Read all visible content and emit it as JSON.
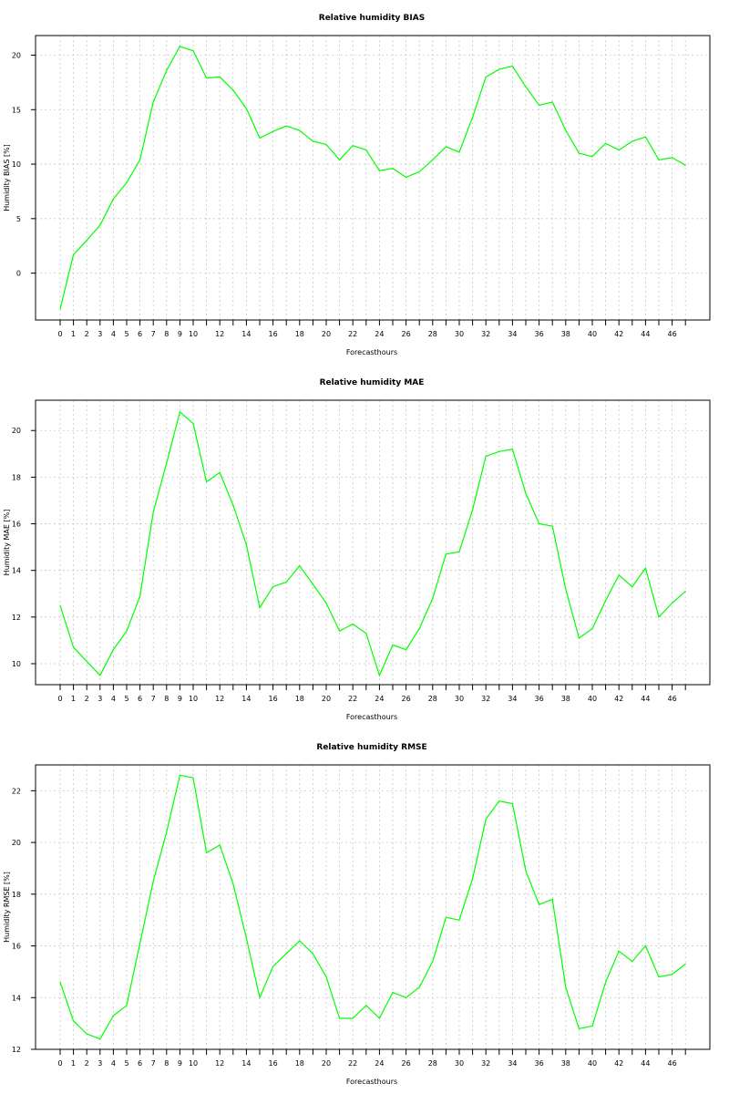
{
  "chart_data": [
    {
      "type": "line",
      "title": "Relative humidity BIAS",
      "xlabel": "Forecasthours",
      "ylabel": "Humidity BIAS [%]",
      "x": [
        0,
        1,
        2,
        3,
        4,
        5,
        6,
        7,
        8,
        9,
        10,
        11,
        12,
        13,
        14,
        15,
        16,
        17,
        18,
        19,
        20,
        21,
        22,
        23,
        24,
        25,
        26,
        27,
        28,
        29,
        30,
        31,
        32,
        33,
        34,
        35,
        36,
        37,
        38,
        39,
        40,
        41,
        42,
        43,
        44,
        45,
        46,
        47
      ],
      "x_tick_labels": [
        "0",
        "1",
        "2",
        "3",
        "4",
        "5",
        "6",
        "7",
        "8",
        "9",
        "10",
        "12",
        "14",
        "16",
        "18",
        "20",
        "22",
        "24",
        "26",
        "28",
        "30",
        "32",
        "34",
        "36",
        "38",
        "40",
        "42",
        "44",
        "46"
      ],
      "y_ticks": [
        0,
        5,
        10,
        15,
        20
      ],
      "ylim": [
        -4.3,
        21.8
      ],
      "grid": true,
      "series": [
        {
          "color": "#00ff00",
          "values": [
            -3.3,
            1.7,
            3.0,
            4.4,
            6.8,
            8.3,
            10.4,
            15.7,
            18.6,
            20.8,
            20.4,
            17.9,
            18.0,
            16.8,
            15.1,
            12.4,
            13.0,
            13.5,
            13.1,
            12.1,
            11.8,
            10.4,
            11.7,
            11.3,
            9.4,
            9.6,
            8.8,
            9.3,
            10.4,
            11.6,
            11.1,
            14.3,
            18.0,
            18.7,
            19.0,
            17.1,
            15.4,
            15.7,
            13.1,
            11.0,
            10.7,
            11.9,
            11.3,
            12.1,
            12.5,
            10.4,
            10.6,
            9.9
          ]
        }
      ]
    },
    {
      "type": "line",
      "title": "Relative humidity MAE",
      "xlabel": "Forecasthours",
      "ylabel": "Humidity MAE [%]",
      "x": [
        0,
        1,
        2,
        3,
        4,
        5,
        6,
        7,
        8,
        9,
        10,
        11,
        12,
        13,
        14,
        15,
        16,
        17,
        18,
        19,
        20,
        21,
        22,
        23,
        24,
        25,
        26,
        27,
        28,
        29,
        30,
        31,
        32,
        33,
        34,
        35,
        36,
        37,
        38,
        39,
        40,
        41,
        42,
        43,
        44,
        45,
        46,
        47
      ],
      "x_tick_labels": [
        "0",
        "1",
        "2",
        "3",
        "4",
        "5",
        "6",
        "7",
        "8",
        "9",
        "10",
        "12",
        "14",
        "16",
        "18",
        "20",
        "22",
        "24",
        "26",
        "28",
        "30",
        "32",
        "34",
        "36",
        "38",
        "40",
        "42",
        "44",
        "46"
      ],
      "y_ticks": [
        10,
        12,
        14,
        16,
        18,
        20
      ],
      "ylim": [
        9.1,
        21.3
      ],
      "grid": true,
      "series": [
        {
          "color": "#00ff00",
          "values": [
            12.5,
            10.7,
            10.1,
            9.5,
            10.6,
            11.4,
            12.9,
            16.5,
            18.6,
            20.8,
            20.3,
            17.8,
            18.2,
            16.8,
            15.1,
            12.4,
            13.3,
            13.5,
            14.2,
            13.4,
            12.6,
            11.4,
            11.7,
            11.3,
            9.5,
            10.8,
            10.6,
            11.5,
            12.8,
            14.7,
            14.8,
            16.6,
            18.9,
            19.1,
            19.2,
            17.3,
            16.0,
            15.9,
            13.2,
            11.1,
            11.5,
            12.7,
            13.8,
            13.3,
            14.1,
            12.0,
            12.6,
            13.1
          ]
        }
      ]
    },
    {
      "type": "line",
      "title": "Relative humidity RMSE",
      "xlabel": "Forecasthours",
      "ylabel": "Humidity RMSE [%]",
      "x": [
        0,
        1,
        2,
        3,
        4,
        5,
        6,
        7,
        8,
        9,
        10,
        11,
        12,
        13,
        14,
        15,
        16,
        17,
        18,
        19,
        20,
        21,
        22,
        23,
        24,
        25,
        26,
        27,
        28,
        29,
        30,
        31,
        32,
        33,
        34,
        35,
        36,
        37,
        38,
        39,
        40,
        41,
        42,
        43,
        44,
        45,
        46,
        47
      ],
      "x_tick_labels": [
        "0",
        "1",
        "2",
        "3",
        "4",
        "5",
        "6",
        "7",
        "8",
        "9",
        "10",
        "12",
        "14",
        "16",
        "18",
        "20",
        "22",
        "24",
        "26",
        "28",
        "30",
        "32",
        "34",
        "36",
        "38",
        "40",
        "42",
        "44",
        "46"
      ],
      "y_ticks": [
        12,
        14,
        16,
        18,
        20,
        22
      ],
      "ylim": [
        12.0,
        23.0
      ],
      "grid": true,
      "series": [
        {
          "color": "#00ff00",
          "values": [
            14.6,
            13.1,
            12.6,
            12.4,
            13.3,
            13.7,
            16.1,
            18.5,
            20.4,
            22.6,
            22.5,
            19.6,
            19.9,
            18.4,
            16.3,
            14.0,
            15.2,
            15.7,
            16.2,
            15.7,
            14.8,
            13.2,
            13.2,
            13.7,
            13.2,
            14.2,
            14.0,
            14.4,
            15.4,
            17.1,
            17.0,
            18.6,
            20.9,
            21.6,
            21.5,
            18.9,
            17.6,
            17.8,
            14.4,
            12.8,
            12.9,
            14.6,
            15.8,
            15.4,
            16.0,
            14.8,
            14.9,
            15.3
          ]
        }
      ]
    }
  ]
}
